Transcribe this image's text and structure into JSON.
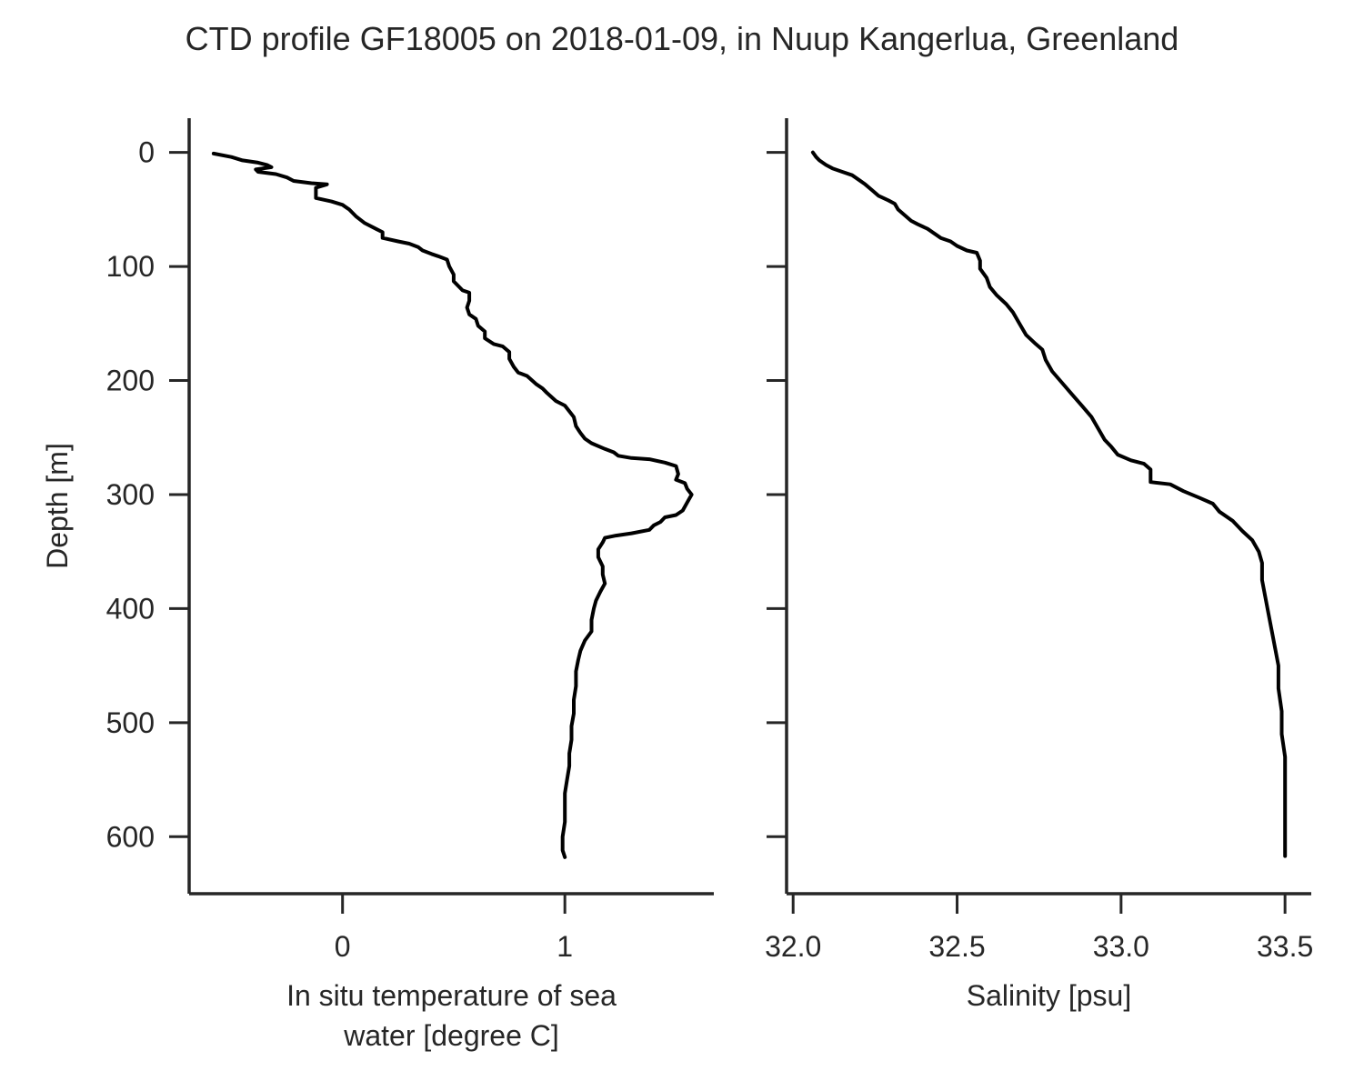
{
  "title": "CTD profile GF18005 on 2018-01-09, in Nuup Kangerlua, Greenland",
  "colors": {
    "line": "#000000",
    "axis": "#262626",
    "text": "#262626",
    "background": "#ffffff"
  },
  "chart_data": [
    {
      "type": "line",
      "orientation": "profile",
      "xlabel_lines": [
        "In situ temperature of sea",
        "water [degree C]"
      ],
      "ylabel": "Depth [m]",
      "xlim": [
        -0.69,
        1.67
      ],
      "ylim": [
        650,
        -30
      ],
      "y_inverted": true,
      "xticks": [
        0,
        1
      ],
      "xtick_labels": [
        "0",
        "1"
      ],
      "yticks": [
        0,
        100,
        200,
        300,
        400,
        500,
        600
      ],
      "ytick_labels": [
        "0",
        "100",
        "200",
        "300",
        "400",
        "500",
        "600"
      ],
      "grid": false,
      "series": [
        {
          "color": "#000000",
          "points": [
            [
              -0.58,
              1
            ],
            [
              -0.5,
              4
            ],
            [
              -0.45,
              7
            ],
            [
              -0.38,
              9
            ],
            [
              -0.34,
              11
            ],
            [
              -0.32,
              13
            ],
            [
              -0.39,
              15
            ],
            [
              -0.38,
              17
            ],
            [
              -0.3,
              19
            ],
            [
              -0.25,
              22
            ],
            [
              -0.22,
              25
            ],
            [
              -0.14,
              27
            ],
            [
              -0.07,
              28
            ],
            [
              -0.12,
              31
            ],
            [
              -0.12,
              36
            ],
            [
              -0.12,
              40
            ],
            [
              -0.05,
              43
            ],
            [
              0.0,
              46
            ],
            [
              0.03,
              50
            ],
            [
              0.06,
              56
            ],
            [
              0.1,
              62
            ],
            [
              0.15,
              67
            ],
            [
              0.18,
              70
            ],
            [
              0.18,
              75
            ],
            [
              0.25,
              78
            ],
            [
              0.3,
              80
            ],
            [
              0.34,
              83
            ],
            [
              0.36,
              86
            ],
            [
              0.4,
              89
            ],
            [
              0.43,
              91
            ],
            [
              0.47,
              94
            ],
            [
              0.48,
              100
            ],
            [
              0.5,
              107
            ],
            [
              0.5,
              113
            ],
            [
              0.54,
              121
            ],
            [
              0.57,
              123
            ],
            [
              0.57,
              130
            ],
            [
              0.56,
              136
            ],
            [
              0.57,
              142
            ],
            [
              0.6,
              146
            ],
            [
              0.61,
              152
            ],
            [
              0.64,
              157
            ],
            [
              0.64,
              163
            ],
            [
              0.68,
              168
            ],
            [
              0.72,
              170
            ],
            [
              0.75,
              175
            ],
            [
              0.75,
              181
            ],
            [
              0.77,
              188
            ],
            [
              0.79,
              193
            ],
            [
              0.83,
              196
            ],
            [
              0.87,
              203
            ],
            [
              0.9,
              207
            ],
            [
              0.92,
              211
            ],
            [
              0.96,
              218
            ],
            [
              1.0,
              222
            ],
            [
              1.02,
              227
            ],
            [
              1.04,
              232
            ],
            [
              1.05,
              240
            ],
            [
              1.07,
              246
            ],
            [
              1.09,
              251
            ],
            [
              1.12,
              255
            ],
            [
              1.18,
              260
            ],
            [
              1.22,
              263
            ],
            [
              1.24,
              266
            ],
            [
              1.3,
              268
            ],
            [
              1.38,
              269
            ],
            [
              1.45,
              272
            ],
            [
              1.5,
              275
            ],
            [
              1.51,
              282
            ],
            [
              1.5,
              287
            ],
            [
              1.54,
              290
            ],
            [
              1.55,
              295
            ],
            [
              1.57,
              300
            ],
            [
              1.55,
              307
            ],
            [
              1.53,
              314
            ],
            [
              1.5,
              318
            ],
            [
              1.45,
              320
            ],
            [
              1.43,
              324
            ],
            [
              1.4,
              327
            ],
            [
              1.38,
              331
            ],
            [
              1.3,
              334
            ],
            [
              1.23,
              336
            ],
            [
              1.18,
              338
            ],
            [
              1.17,
              342
            ],
            [
              1.15,
              348
            ],
            [
              1.15,
              355
            ],
            [
              1.17,
              363
            ],
            [
              1.17,
              370
            ],
            [
              1.18,
              378
            ],
            [
              1.16,
              385
            ],
            [
              1.14,
              393
            ],
            [
              1.13,
              400
            ],
            [
              1.12,
              410
            ],
            [
              1.12,
              420
            ],
            [
              1.09,
              428
            ],
            [
              1.07,
              437
            ],
            [
              1.06,
              445
            ],
            [
              1.05,
              455
            ],
            [
              1.05,
              468
            ],
            [
              1.04,
              480
            ],
            [
              1.04,
              492
            ],
            [
              1.03,
              503
            ],
            [
              1.03,
              515
            ],
            [
              1.02,
              527
            ],
            [
              1.02,
              538
            ],
            [
              1.01,
              550
            ],
            [
              1.0,
              562
            ],
            [
              1.0,
              575
            ],
            [
              1.0,
              587
            ],
            [
              0.99,
              600
            ],
            [
              0.99,
              612
            ],
            [
              1.0,
              618
            ]
          ]
        }
      ]
    },
    {
      "type": "line",
      "orientation": "profile",
      "xlabel_lines": [
        "Salinity [psu]"
      ],
      "ylabel": "",
      "xlim": [
        31.98,
        33.58
      ],
      "ylim": [
        650,
        -30
      ],
      "y_inverted": true,
      "xticks": [
        32.0,
        32.5,
        33.0,
        33.5
      ],
      "xtick_labels": [
        "32.0",
        "32.5",
        "33.0",
        "33.5"
      ],
      "yticks": [
        0,
        100,
        200,
        300,
        400,
        500,
        600
      ],
      "ytick_labels": [],
      "grid": false,
      "series": [
        {
          "color": "#000000",
          "points": [
            [
              32.06,
              0
            ],
            [
              32.07,
              4
            ],
            [
              32.08,
              7
            ],
            [
              32.1,
              11
            ],
            [
              32.12,
              14
            ],
            [
              32.15,
              17
            ],
            [
              32.18,
              20
            ],
            [
              32.2,
              24
            ],
            [
              32.22,
              28
            ],
            [
              32.24,
              33
            ],
            [
              32.26,
              38
            ],
            [
              32.29,
              42
            ],
            [
              32.31,
              45
            ],
            [
              32.32,
              50
            ],
            [
              32.34,
              55
            ],
            [
              32.36,
              60
            ],
            [
              32.38,
              63
            ],
            [
              32.41,
              67
            ],
            [
              32.43,
              71
            ],
            [
              32.45,
              75
            ],
            [
              32.48,
              78
            ],
            [
              32.5,
              82
            ],
            [
              32.53,
              86
            ],
            [
              32.56,
              88
            ],
            [
              32.57,
              95
            ],
            [
              32.57,
              102
            ],
            [
              32.59,
              110
            ],
            [
              32.6,
              118
            ],
            [
              32.62,
              125
            ],
            [
              32.65,
              133
            ],
            [
              32.67,
              140
            ],
            [
              32.69,
              150
            ],
            [
              32.71,
              160
            ],
            [
              32.74,
              168
            ],
            [
              32.76,
              173
            ],
            [
              32.77,
              182
            ],
            [
              32.79,
              192
            ],
            [
              32.82,
              202
            ],
            [
              32.85,
              212
            ],
            [
              32.88,
              222
            ],
            [
              32.91,
              232
            ],
            [
              32.93,
              242
            ],
            [
              32.95,
              252
            ],
            [
              32.97,
              258
            ],
            [
              32.99,
              265
            ],
            [
              33.03,
              270
            ],
            [
              33.07,
              273
            ],
            [
              33.09,
              278
            ],
            [
              33.09,
              289
            ],
            [
              33.15,
              291
            ],
            [
              33.19,
              297
            ],
            [
              33.24,
              303
            ],
            [
              33.28,
              308
            ],
            [
              33.3,
              315
            ],
            [
              33.34,
              323
            ],
            [
              33.37,
              332
            ],
            [
              33.4,
              340
            ],
            [
              33.42,
              350
            ],
            [
              33.43,
              360
            ],
            [
              33.43,
              375
            ],
            [
              33.44,
              390
            ],
            [
              33.45,
              405
            ],
            [
              33.46,
              420
            ],
            [
              33.47,
              435
            ],
            [
              33.48,
              450
            ],
            [
              33.48,
              470
            ],
            [
              33.49,
              490
            ],
            [
              33.49,
              510
            ],
            [
              33.5,
              530
            ],
            [
              33.5,
              550
            ],
            [
              33.5,
              570
            ],
            [
              33.5,
              590
            ],
            [
              33.5,
              610
            ],
            [
              33.5,
              617
            ]
          ]
        }
      ]
    }
  ]
}
